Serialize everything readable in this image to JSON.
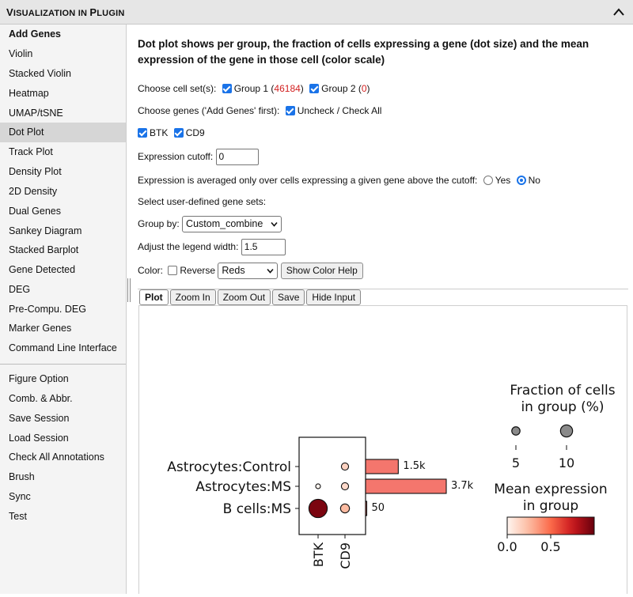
{
  "panel": {
    "title_first": "V",
    "title_rest": "isualization in ",
    "title_first2": "P",
    "title_rest2": "lugin"
  },
  "sidebar": {
    "items": [
      {
        "label": "Add Genes"
      },
      {
        "label": "Violin"
      },
      {
        "label": "Stacked Violin"
      },
      {
        "label": "Heatmap"
      },
      {
        "label": "UMAP/tSNE"
      },
      {
        "label": "Dot Plot"
      },
      {
        "label": "Track Plot"
      },
      {
        "label": "Density Plot"
      },
      {
        "label": "2D Density"
      },
      {
        "label": "Dual Genes"
      },
      {
        "label": "Sankey Diagram"
      },
      {
        "label": "Stacked Barplot"
      },
      {
        "label": "Gene Detected"
      },
      {
        "label": "DEG"
      },
      {
        "label": "Pre-Compu. DEG"
      },
      {
        "label": "Marker Genes"
      },
      {
        "label": "Command Line Interface"
      }
    ],
    "items2": [
      {
        "label": "Figure Option"
      },
      {
        "label": "Comb. & Abbr."
      },
      {
        "label": "Save Session"
      },
      {
        "label": "Load Session"
      },
      {
        "label": "Check All Annotations"
      },
      {
        "label": "Brush"
      },
      {
        "label": "Sync"
      },
      {
        "label": "Test"
      }
    ]
  },
  "main": {
    "heading": "Dot plot shows per group, the fraction of cells expressing a gene (dot size) and the mean expression of the gene in those cell (color scale)",
    "cellsets_label": "Choose cell set(s):",
    "group1_label": "Group 1 (",
    "group1_count": "46184",
    "group2_label": "Group 2 (",
    "group2_count": "0",
    "close_paren": ")",
    "genes_label": "Choose genes ('Add Genes' first):",
    "check_all_label": "Uncheck / Check All",
    "gene1": "BTK",
    "gene2": "CD9",
    "cutoff_label": "Expression cutoff:",
    "cutoff_value": "0",
    "averaged_label": "Expression is averaged only over cells expressing a given gene above the cutoff:",
    "yes_label": "Yes",
    "no_label": "No",
    "genesets_label": "Select user-defined gene sets:",
    "groupby_label": "Group by:",
    "groupby_value": "Custom_combine",
    "legendwidth_label": "Adjust the legend width:",
    "legendwidth_value": "1.5",
    "color_label": "Color:",
    "reverse_label": "Reverse",
    "color_value": "Reds",
    "color_help": "Show Color Help"
  },
  "toolbar": {
    "plot": "Plot",
    "zoom_in": "Zoom In",
    "zoom_out": "Zoom Out",
    "save": "Save",
    "hide_input": "Hide Input"
  },
  "chart_data": {
    "type": "scatter",
    "groups": [
      "Astrocytes:Control",
      "Astrocytes:MS",
      "B cells:MS"
    ],
    "genes": [
      "BTK",
      "CD9"
    ],
    "fraction_pct": [
      [
        0,
        8
      ],
      [
        1,
        8
      ],
      [
        40,
        13
      ]
    ],
    "mean_expression": [
      [
        0.0,
        0.15
      ],
      [
        0.0,
        0.12
      ],
      [
        0.95,
        0.25
      ]
    ],
    "bar_labels": [
      "1.5k",
      "3.7k",
      "50"
    ],
    "bar_values": [
      1500,
      3700,
      50
    ],
    "size_legend_title": "Fraction of cells\nin group (%)",
    "size_legend_values": [
      5,
      10
    ],
    "color_legend_title": "Mean expression\nin group",
    "color_legend_ticks": [
      "0.0",
      "0.5"
    ],
    "colormap": "Reds"
  }
}
